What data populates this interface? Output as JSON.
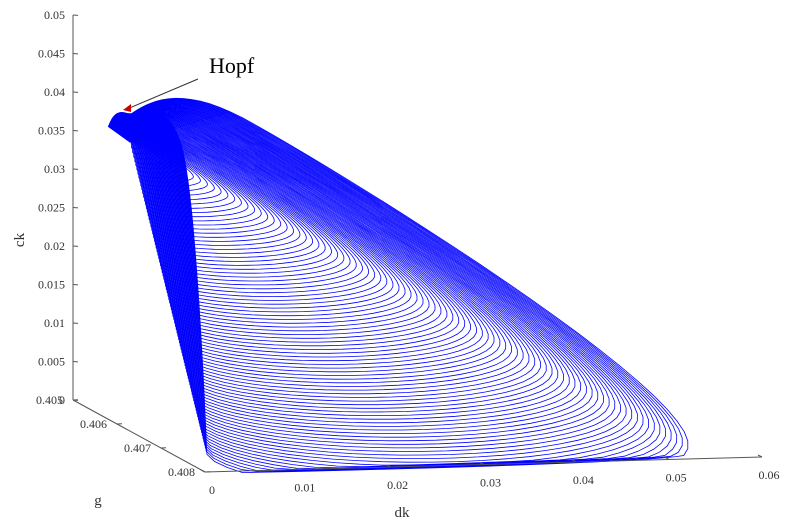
{
  "chart_data": {
    "type": "line",
    "plot_kind": "3d-family-of-closed-orbits",
    "xlabel": "dk",
    "ylabel": "g",
    "zlabel": "ck",
    "x_ticks": [
      "0",
      "0.01",
      "0.02",
      "0.03",
      "0.04",
      "0.05",
      "0.06"
    ],
    "y_ticks": [
      "0.405",
      "0.406",
      "0.407",
      "0.408"
    ],
    "z_ticks": [
      "0",
      "0.005",
      "0.01",
      "0.015",
      "0.02",
      "0.025",
      "0.03",
      "0.035",
      "0.04",
      "0.045",
      "0.05"
    ],
    "xlim": [
      0,
      0.06
    ],
    "ylim": [
      0.405,
      0.408
    ],
    "zlim": [
      0,
      0.05
    ],
    "grid": false,
    "line_color": "#0000ff",
    "annotation": {
      "text": "Hopf",
      "point": {
        "dk": 0.0,
        "g": 0.4063,
        "ck": 0.0375
      }
    },
    "series": [
      {
        "start_point": {
          "dk": 0.0,
          "g": 0.4063,
          "ck": 0.0375
        },
        "orbit_count": 90,
        "largest_orbit": {
          "dk": [
            0.0,
            0.0,
            0.0,
            0.0008,
            0.053,
            0.014,
            0.0
          ],
          "g": [
            0.4058,
            0.4062,
            0.4075,
            0.40805,
            0.4078,
            0.406,
            0.4058
          ],
          "ck": [
            0.038,
            0.041,
            0.04,
            0.0015,
            0.001,
            0.039,
            0.038
          ]
        }
      }
    ]
  }
}
